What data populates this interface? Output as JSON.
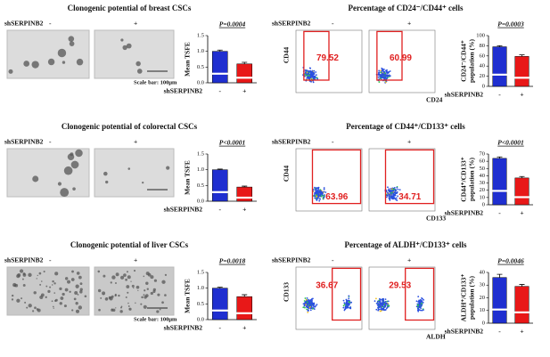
{
  "chart_data": [
    {
      "type": "bar",
      "title": "Clonogenic potential of breast CSCs",
      "p_value": "P=0.0004",
      "ylabel": [
        "Mean TSFE"
      ],
      "xlabel": "shSERPINB2",
      "categories": [
        "-",
        "+"
      ],
      "values": [
        1.0,
        0.6
      ],
      "errors": [
        0.04,
        0.05
      ],
      "colors": [
        "#1f2fd0",
        "#e81818"
      ],
      "ylim": [
        0,
        1.5
      ],
      "yticks": [
        {
          "value": 0,
          "label": "0.0"
        },
        {
          "value": 0.5,
          "label": "0.5"
        },
        {
          "value": 1,
          "label": "1.0"
        },
        {
          "value": 1.5,
          "label": "1.5"
        }
      ]
    },
    {
      "type": "bar",
      "title": "Percentage of CD24⁻/CD44⁺ cells",
      "p_value": "P=0.0003",
      "ylabel": [
        "CD24⁻/CD44⁺",
        "population (%)"
      ],
      "xlabel": "shSERPINB2",
      "categories": [
        "-",
        "+"
      ],
      "values": [
        78,
        59
      ],
      "errors": [
        2,
        3
      ],
      "colors": [
        "#1f2fd0",
        "#e81818"
      ],
      "ylim": [
        0,
        100
      ],
      "yticks": [
        0,
        20,
        40,
        60,
        80,
        100
      ]
    },
    {
      "type": "bar",
      "title": "Clonogenic potential of colorectal CSCs",
      "p_value": "P<0.0001",
      "ylabel": [
        "Mean TSFE"
      ],
      "xlabel": "shSERPINB2",
      "categories": [
        "-",
        "+"
      ],
      "values": [
        1.0,
        0.45
      ],
      "errors": [
        0.02,
        0.03
      ],
      "colors": [
        "#1f2fd0",
        "#e81818"
      ],
      "ylim": [
        0,
        1.5
      ],
      "yticks": [
        {
          "value": 0,
          "label": "0.0"
        },
        {
          "value": 0.5,
          "label": "0.5"
        },
        {
          "value": 1,
          "label": "1.0"
        },
        {
          "value": 1.5,
          "label": "1.5"
        }
      ]
    },
    {
      "type": "bar",
      "title": "Percentage of CD44⁺/CD133⁺ cells",
      "p_value": "P<0.0001",
      "ylabel": [
        "CD44⁺/CD133⁺",
        "population (%)"
      ],
      "xlabel": "shSERPINB2",
      "categories": [
        "-",
        "+"
      ],
      "values": [
        64,
        37
      ],
      "errors": [
        2,
        2
      ],
      "colors": [
        "#1f2fd0",
        "#e81818"
      ],
      "ylim": [
        0,
        70
      ],
      "yticks": [
        0,
        10,
        20,
        30,
        40,
        50,
        60,
        70
      ]
    },
    {
      "type": "bar",
      "title": "Clonogenic potential of liver CSCs",
      "p_value": "P=0.0018",
      "ylabel": [
        "Mean TSFE"
      ],
      "xlabel": "shSERPINB2",
      "categories": [
        "-",
        "+"
      ],
      "values": [
        1.0,
        0.73
      ],
      "errors": [
        0.03,
        0.06
      ],
      "colors": [
        "#1f2fd0",
        "#e81818"
      ],
      "ylim": [
        0,
        1.5
      ],
      "yticks": [
        {
          "value": 0,
          "label": "0.0"
        },
        {
          "value": 0.5,
          "label": "0.5"
        },
        {
          "value": 1,
          "label": "1.0"
        },
        {
          "value": 1.5,
          "label": "1.5"
        }
      ]
    },
    {
      "type": "bar",
      "title": "Percentage of ALDH⁺/CD133⁺ cells",
      "p_value": "P=0.0046",
      "ylabel": [
        "ALDH⁺/CD133⁺",
        "population (%)"
      ],
      "xlabel": "shSERPINB2",
      "categories": [
        "-",
        "+"
      ],
      "values": [
        36,
        29
      ],
      "errors": [
        2.5,
        1.5
      ],
      "colors": [
        "#1f2fd0",
        "#e81818"
      ],
      "ylim": [
        0,
        40
      ],
      "yticks": [
        0,
        10,
        20,
        30,
        40
      ]
    }
  ],
  "panels": [
    {
      "kind": "micrograph",
      "group": "shSERPINB2",
      "minus": "-",
      "plus": "+",
      "scale_bar": "Scale bar: 100μm"
    },
    {
      "kind": "flow",
      "group": "shSERPINB2",
      "minus": "-",
      "plus": "+",
      "y_axis": "CD44",
      "x_axis": "CD24",
      "gates": [
        "79.52",
        "60.99"
      ]
    },
    {
      "kind": "micrograph",
      "group": "shSERPINB2",
      "minus": "-",
      "plus": "+"
    },
    {
      "kind": "flow",
      "group": "shSERPINB2",
      "minus": "-",
      "plus": "+",
      "y_axis": "CD44",
      "x_axis": "CD133",
      "gates": [
        "63.96",
        "34.71"
      ]
    },
    {
      "kind": "micrograph",
      "group": "shSERPINB2",
      "minus": "-",
      "plus": "+",
      "scale_bar": "Scale bar: 100μm"
    },
    {
      "kind": "flow",
      "group": "shSERPINB2",
      "minus": "-",
      "plus": "+",
      "y_axis": "CD133",
      "x_axis": "ALDH",
      "gates": [
        "36.67",
        "29.53"
      ]
    }
  ]
}
